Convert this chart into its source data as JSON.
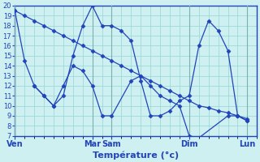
{
  "xlabel": "Température (°c)",
  "bg_color": "#cef0f0",
  "line_color": "#2244bb",
  "grid_color": "#9dd9d9",
  "sep_color": "#7ab0b0",
  "ylim": [
    7,
    20
  ],
  "yticks": [
    7,
    8,
    9,
    10,
    11,
    12,
    13,
    14,
    15,
    16,
    17,
    18,
    19,
    20
  ],
  "n_points": 25,
  "sep_positions": [
    0,
    8,
    10,
    18,
    24
  ],
  "day_labels": [
    [
      0,
      "Ven"
    ],
    [
      8,
      "Mar"
    ],
    [
      10,
      "Sam"
    ],
    [
      18,
      "Dim"
    ],
    [
      24,
      "Lun"
    ]
  ],
  "line1_x": [
    0,
    1,
    2,
    3,
    4,
    5,
    6,
    7,
    8,
    9,
    10,
    11,
    12,
    13,
    14,
    15,
    16,
    17,
    18,
    19,
    20,
    21,
    22,
    23,
    24
  ],
  "line1_y": [
    19.5,
    19.0,
    18.5,
    18.0,
    17.5,
    17.0,
    16.5,
    16.0,
    15.5,
    15.0,
    14.5,
    14.0,
    13.5,
    13.0,
    12.5,
    12.0,
    11.5,
    11.0,
    10.5,
    10.0,
    9.8,
    9.5,
    9.3,
    9.0,
    8.7
  ],
  "line2_x": [
    0,
    1,
    2,
    3,
    4,
    5,
    6,
    7,
    8,
    9,
    10,
    12,
    13,
    14,
    15,
    16,
    17,
    18,
    19,
    22,
    23,
    24
  ],
  "line2_y": [
    19.5,
    14.5,
    12.0,
    11.0,
    10.0,
    12.0,
    14.0,
    13.5,
    12.0,
    9.0,
    9.0,
    12.5,
    13.0,
    12.0,
    11.0,
    10.5,
    10.0,
    7.0,
    6.8,
    9.0,
    9.0,
    8.5
  ],
  "line3_x": [
    2,
    3,
    4,
    5,
    6,
    7,
    8,
    9,
    10,
    11,
    12,
    13,
    14,
    15,
    16,
    17,
    18,
    19,
    20,
    21,
    22,
    23,
    24
  ],
  "line3_y": [
    12.0,
    11.0,
    10.0,
    11.0,
    15.0,
    18.0,
    20.0,
    18.0,
    18.0,
    17.5,
    16.5,
    12.5,
    9.0,
    9.0,
    9.5,
    10.5,
    11.0,
    16.0,
    18.5,
    17.5,
    15.5,
    9.0,
    8.5
  ]
}
